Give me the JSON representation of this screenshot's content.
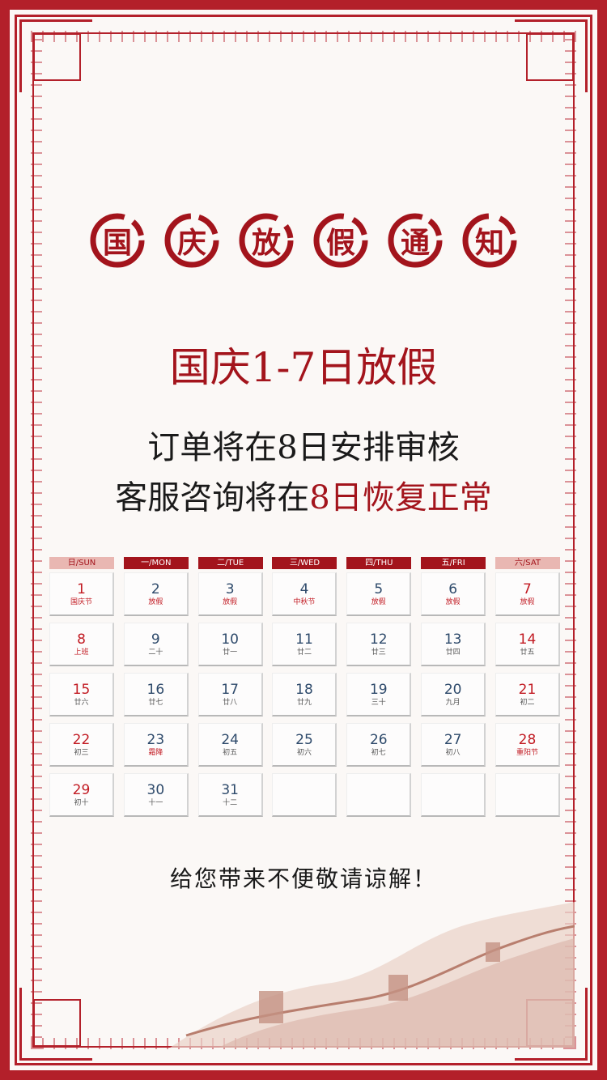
{
  "colors": {
    "accent": "#a3141c",
    "frame": "#b3202a",
    "weekday_num": "#2e4a6b"
  },
  "title_seals": [
    "国",
    "庆",
    "放",
    "假",
    "通",
    "知"
  ],
  "headline": "国庆1-7日放假",
  "line1": "订单将在8日安排审核",
  "line2_prefix": "客服咨询将在",
  "line2_highlight": "8日恢复正常",
  "weekdays": [
    "日/SUN",
    "一/MON",
    "二/TUE",
    "三/WED",
    "四/THU",
    "五/FRI",
    "六/SAT"
  ],
  "days": [
    {
      "n": "1",
      "s": "国庆节"
    },
    {
      "n": "2",
      "s": "放假"
    },
    {
      "n": "3",
      "s": "放假"
    },
    {
      "n": "4",
      "s": "中秋节"
    },
    {
      "n": "5",
      "s": "放假"
    },
    {
      "n": "6",
      "s": "放假"
    },
    {
      "n": "7",
      "s": "放假"
    },
    {
      "n": "8",
      "s": "上班"
    },
    {
      "n": "9",
      "s": "二十"
    },
    {
      "n": "10",
      "s": "廿一"
    },
    {
      "n": "11",
      "s": "廿二"
    },
    {
      "n": "12",
      "s": "廿三"
    },
    {
      "n": "13",
      "s": "廿四"
    },
    {
      "n": "14",
      "s": "廿五"
    },
    {
      "n": "15",
      "s": "廿六"
    },
    {
      "n": "16",
      "s": "廿七"
    },
    {
      "n": "17",
      "s": "廿八"
    },
    {
      "n": "18",
      "s": "廿九"
    },
    {
      "n": "19",
      "s": "三十"
    },
    {
      "n": "20",
      "s": "九月"
    },
    {
      "n": "21",
      "s": "初二"
    },
    {
      "n": "22",
      "s": "初三"
    },
    {
      "n": "23",
      "s": "霜降"
    },
    {
      "n": "24",
      "s": "初五"
    },
    {
      "n": "25",
      "s": "初六"
    },
    {
      "n": "26",
      "s": "初七"
    },
    {
      "n": "27",
      "s": "初八"
    },
    {
      "n": "28",
      "s": "重阳节"
    },
    {
      "n": "29",
      "s": "初十"
    },
    {
      "n": "30",
      "s": "十一"
    },
    {
      "n": "31",
      "s": "十二"
    },
    {
      "n": "",
      "s": ""
    },
    {
      "n": "",
      "s": ""
    },
    {
      "n": "",
      "s": ""
    },
    {
      "n": "",
      "s": ""
    }
  ],
  "footer": "给您带来不便敬请谅解！"
}
